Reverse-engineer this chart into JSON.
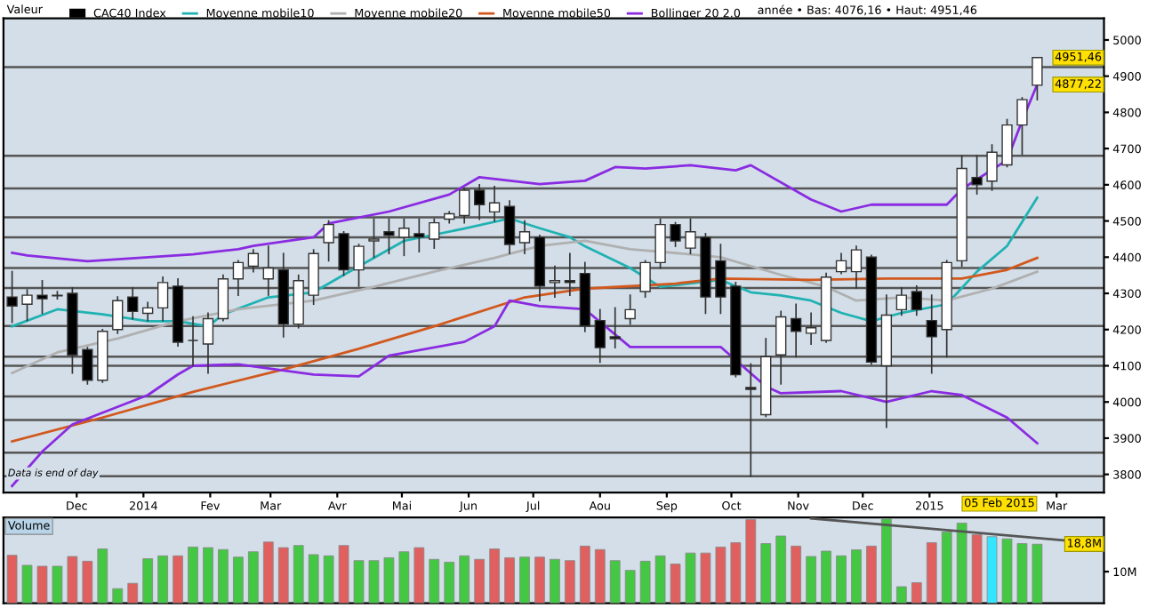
{
  "chart_data": [
    {
      "type": "candlestick",
      "title": "Valeur",
      "legend": "top",
      "grid": false,
      "x": [
        "2013-11-01",
        "2013-11-08",
        "2013-11-15",
        "2013-11-22",
        "2013-11-29",
        "2013-12-06",
        "2013-12-13",
        "2013-12-20",
        "2013-12-27",
        "2014-01-03",
        "2014-01-10",
        "2014-01-17",
        "2014-01-24",
        "2014-01-31",
        "2014-02-07",
        "2014-02-14",
        "2014-02-21",
        "2014-02-28",
        "2014-03-07",
        "2014-03-14",
        "2014-03-21",
        "2014-03-28",
        "2014-04-04",
        "2014-04-11",
        "2014-04-18",
        "2014-04-25",
        "2014-05-02",
        "2014-05-09",
        "2014-05-16",
        "2014-05-23",
        "2014-05-30",
        "2014-06-06",
        "2014-06-13",
        "2014-06-20",
        "2014-06-27",
        "2014-07-04",
        "2014-07-11",
        "2014-07-18",
        "2014-07-25",
        "2014-08-01",
        "2014-08-08",
        "2014-08-15",
        "2014-08-22",
        "2014-08-29",
        "2014-09-05",
        "2014-09-12",
        "2014-09-19",
        "2014-09-26",
        "2014-10-03",
        "2014-10-10",
        "2014-10-17",
        "2014-10-24",
        "2014-10-31",
        "2014-11-07",
        "2014-11-14",
        "2014-11-21",
        "2014-11-28",
        "2014-12-05",
        "2014-12-12",
        "2014-12-19",
        "2014-12-26",
        "2015-01-02",
        "2015-01-09",
        "2015-01-16",
        "2015-01-23",
        "2015-01-30",
        "2015-02-06",
        "2015-02-13",
        "2015-02-20"
      ],
      "series": [
        {
          "name": "CAC40 Index",
          "ohlc": [
            [
              4290,
              4360,
              4220,
              4265
            ],
            [
              4270,
              4310,
              4225,
              4295
            ],
            [
              4295,
              4335,
              4245,
              4285
            ],
            [
              4295,
              4305,
              4285,
              4293
            ],
            [
              4300,
              4315,
              4080,
              4130
            ],
            [
              4145,
              4150,
              4050,
              4060
            ],
            [
              4060,
              4200,
              4055,
              4195
            ],
            [
              4200,
              4290,
              4190,
              4280
            ],
            [
              4290,
              4315,
              4230,
              4250
            ],
            [
              4245,
              4275,
              4225,
              4260
            ],
            [
              4260,
              4345,
              4225,
              4330
            ],
            [
              4320,
              4340,
              4155,
              4165
            ],
            [
              4170,
              4235,
              4100,
              4170
            ],
            [
              4160,
              4245,
              4080,
              4230
            ],
            [
              4230,
              4350,
              4225,
              4340
            ],
            [
              4340,
              4390,
              4295,
              4385
            ],
            [
              4375,
              4420,
              4360,
              4410
            ],
            [
              4340,
              4430,
              4295,
              4370
            ],
            [
              4365,
              4410,
              4180,
              4215
            ],
            [
              4215,
              4350,
              4205,
              4335
            ],
            [
              4295,
              4420,
              4270,
              4410
            ],
            [
              4440,
              4500,
              4390,
              4490
            ],
            [
              4465,
              4470,
              4350,
              4365
            ],
            [
              4365,
              4435,
              4320,
              4430
            ],
            [
              4445,
              4505,
              4400,
              4450
            ],
            [
              4470,
              4505,
              4410,
              4460
            ],
            [
              4455,
              4505,
              4405,
              4480
            ],
            [
              4465,
              4505,
              4415,
              4455
            ],
            [
              4450,
              4505,
              4425,
              4495
            ],
            [
              4505,
              4525,
              4495,
              4520
            ],
            [
              4515,
              4590,
              4495,
              4585
            ],
            [
              4585,
              4600,
              4505,
              4545
            ],
            [
              4525,
              4595,
              4500,
              4550
            ],
            [
              4540,
              4555,
              4410,
              4435
            ],
            [
              4440,
              4500,
              4410,
              4470
            ],
            [
              4455,
              4460,
              4280,
              4320
            ],
            [
              4330,
              4375,
              4290,
              4335
            ],
            [
              4335,
              4410,
              4295,
              4330
            ],
            [
              4355,
              4385,
              4195,
              4210
            ],
            [
              4225,
              4255,
              4110,
              4150
            ],
            [
              4180,
              4260,
              4150,
              4175
            ],
            [
              4230,
              4295,
              4215,
              4255
            ],
            [
              4305,
              4390,
              4290,
              4385
            ],
            [
              4385,
              4505,
              4370,
              4490
            ],
            [
              4490,
              4495,
              4430,
              4445
            ],
            [
              4425,
              4505,
              4410,
              4470
            ],
            [
              4455,
              4465,
              4245,
              4290
            ],
            [
              4390,
              4435,
              4245,
              4290
            ],
            [
              4320,
              4330,
              4070,
              4075
            ],
            [
              4040,
              4105,
              3795,
              4035
            ],
            [
              3965,
              4175,
              3960,
              4125
            ],
            [
              4130,
              4250,
              4050,
              4235
            ],
            [
              4230,
              4270,
              4125,
              4195
            ],
            [
              4190,
              4245,
              4160,
              4205
            ],
            [
              4170,
              4355,
              4165,
              4345
            ],
            [
              4360,
              4410,
              4355,
              4390
            ],
            [
              4360,
              4430,
              4315,
              4420
            ],
            [
              4400,
              4405,
              4105,
              4110
            ],
            [
              4100,
              4295,
              3930,
              4240
            ],
            [
              4255,
              4315,
              4240,
              4295
            ],
            [
              4305,
              4320,
              4240,
              4255
            ],
            [
              4225,
              4295,
              4080,
              4180
            ],
            [
              4200,
              4390,
              4125,
              4385
            ],
            [
              4390,
              4680,
              4375,
              4645
            ],
            [
              4620,
              4680,
              4575,
              4600
            ],
            [
              4610,
              4710,
              4585,
              4690
            ],
            [
              4655,
              4780,
              4650,
              4765
            ],
            [
              4765,
              4840,
              4685,
              4835
            ],
            [
              4875,
              4951.46,
              4835,
              4951.46
            ]
          ]
        },
        {
          "name": "Moyenne mobile10",
          "type": "line",
          "color": "#20b2b2",
          "x": [
            "2013-11-01",
            "2013-11-22",
            "2013-12-13",
            "2014-01-03",
            "2014-01-17",
            "2014-01-31",
            "2014-02-07",
            "2014-02-28",
            "2014-03-21",
            "2014-04-04",
            "2014-05-02",
            "2014-05-30",
            "2014-06-20",
            "2014-07-04",
            "2014-07-18",
            "2014-07-25",
            "2014-08-15",
            "2014-08-29",
            "2014-09-26",
            "2014-10-10",
            "2014-10-24",
            "2014-11-07",
            "2014-11-21",
            "2014-12-05",
            "2014-12-19",
            "2015-01-09",
            "2015-01-23",
            "2015-02-06",
            "2015-02-20"
          ],
          "values": [
            4209,
            4256,
            4242,
            4223,
            4223,
            4209,
            4242,
            4289,
            4303,
            4351,
            4445,
            4479,
            4507,
            4480,
            4455,
            4430,
            4370,
            4318,
            4337,
            4303,
            4294,
            4280,
            4246,
            4223,
            4246,
            4270,
            4360,
            4431,
            4564
          ]
        },
        {
          "name": "Moyenne mobile20",
          "type": "line",
          "color": "#b0b0b0",
          "x": [
            "2013-11-01",
            "2013-11-22",
            "2013-12-20",
            "2014-01-17",
            "2014-02-14",
            "2014-03-21",
            "2014-04-18",
            "2014-05-16",
            "2014-06-13",
            "2014-07-04",
            "2014-07-25",
            "2014-08-15",
            "2014-09-12",
            "2014-09-26",
            "2014-10-24",
            "2014-11-14",
            "2014-11-28",
            "2014-12-19",
            "2015-01-09",
            "2015-01-30",
            "2015-02-20"
          ],
          "values": [
            4080,
            4137,
            4175,
            4223,
            4256,
            4280,
            4318,
            4360,
            4398,
            4431,
            4445,
            4422,
            4408,
            4400,
            4351,
            4318,
            4280,
            4289,
            4280,
            4313,
            4360
          ]
        },
        {
          "name": "Moyenne mobile50",
          "type": "line",
          "color": "#d2581e",
          "x": [
            "2013-11-01",
            "2013-12-13",
            "2014-01-24",
            "2014-03-07",
            "2014-04-11",
            "2014-05-16",
            "2014-06-27",
            "2014-07-25",
            "2014-09-05",
            "2014-09-26",
            "2014-11-07",
            "2014-12-12",
            "2015-01-16",
            "2015-02-06",
            "2015-02-20"
          ],
          "values": [
            3891,
            3957,
            4028,
            4090,
            4147,
            4209,
            4289,
            4313,
            4327,
            4341,
            4337,
            4341,
            4341,
            4365,
            4398
          ]
        },
        {
          "name": "Bollinger 20 2.0",
          "type": "line",
          "color": "#8a2be2",
          "x": [
            "2013-11-01",
            "2013-11-08",
            "2013-12-06",
            "2014-01-24",
            "2014-02-14",
            "2014-02-21",
            "2014-03-21",
            "2014-03-28",
            "2014-04-25",
            "2014-05-23",
            "2014-06-06",
            "2014-07-04",
            "2014-07-25",
            "2014-08-08",
            "2014-08-22",
            "2014-09-12",
            "2014-10-03",
            "2014-10-10",
            "2014-11-07",
            "2014-11-21",
            "2014-12-05",
            "2015-01-09",
            "2015-01-16",
            "2015-02-06",
            "2015-02-13",
            "2015-02-20"
          ],
          "values": [
            4412,
            4405,
            4389,
            4408,
            4422,
            4431,
            4455,
            4493,
            4526,
            4573,
            4621,
            4602,
            4611,
            4649,
            4645,
            4654,
            4640,
            4654,
            4559,
            4526,
            4545,
            4545,
            4588,
            4668,
            4777,
            4877
          ]
        },
        {
          "type": "line",
          "color": "#8a2be2",
          "x": [
            "2013-11-01",
            "2013-11-15",
            "2013-11-29",
            "2014-01-03",
            "2014-01-17",
            "2014-01-24",
            "2014-02-14",
            "2014-03-21",
            "2014-04-11",
            "2014-04-25",
            "2014-05-30",
            "2014-06-13",
            "2014-06-20",
            "2014-07-04",
            "2014-07-25",
            "2014-08-15",
            "2014-09-26",
            "2014-10-17",
            "2014-10-24",
            "2014-11-21",
            "2014-12-12",
            "2015-01-02",
            "2015-01-16",
            "2015-02-06",
            "2015-02-20"
          ],
          "values": [
            3768,
            3863,
            3938,
            4019,
            4076,
            4100,
            4104,
            4076,
            4071,
            4128,
            4166,
            4209,
            4280,
            4265,
            4256,
            4152,
            4152,
            4043,
            4024,
            4030,
            4000,
            4030,
            4019,
            3957,
            3886
          ]
        }
      ],
      "ylim": [
        3750,
        5060
      ],
      "yticks": [
        3800,
        3900,
        4000,
        4100,
        4200,
        4300,
        4400,
        4500,
        4600,
        4700,
        4800,
        4900,
        5000
      ],
      "xlim": [
        "2013-10-28",
        "2015-03-23"
      ],
      "xticks": [
        {
          "value": "2013-12-01",
          "label": "Dec"
        },
        {
          "value": "2014-01-01",
          "label": "2014"
        },
        {
          "value": "2014-02-01",
          "label": "Fev"
        },
        {
          "value": "2014-03-01",
          "label": "Mar"
        },
        {
          "value": "2014-04-01",
          "label": "Avr"
        },
        {
          "value": "2014-05-01",
          "label": "Mai"
        },
        {
          "value": "2014-06-01",
          "label": "Jun"
        },
        {
          "value": "2014-07-01",
          "label": "Jul"
        },
        {
          "value": "2014-08-01",
          "label": "Aou"
        },
        {
          "value": "2014-09-01",
          "label": "Sep"
        },
        {
          "value": "2014-10-01",
          "label": "Oct"
        },
        {
          "value": "2014-11-01",
          "label": "Nov"
        },
        {
          "value": "2014-12-01",
          "label": "Dec"
        },
        {
          "value": "2015-01-01",
          "label": "2015"
        },
        {
          "value": "2015-03-01",
          "label": "Mar"
        }
      ],
      "ref_lines": [
        {
          "axis": "y",
          "value": 4925,
          "color": "#555555"
        },
        {
          "axis": "y",
          "value": 4680,
          "color": "#555555"
        },
        {
          "axis": "y",
          "value": 4590,
          "color": "#555555"
        },
        {
          "axis": "y",
          "value": 4510,
          "color": "#555555"
        },
        {
          "axis": "y",
          "value": 4455,
          "color": "#555555"
        },
        {
          "axis": "y",
          "value": 4370,
          "color": "#555555"
        },
        {
          "axis": "y",
          "value": 4315,
          "color": "#555555"
        },
        {
          "axis": "y",
          "value": 4210,
          "color": "#555555"
        },
        {
          "axis": "y",
          "value": 4125,
          "color": "#555555"
        },
        {
          "axis": "y",
          "value": 4100,
          "color": "#555555"
        },
        {
          "axis": "y",
          "value": 4015,
          "color": "#555555"
        },
        {
          "axis": "y",
          "value": 3950,
          "color": "#555555"
        },
        {
          "axis": "y",
          "value": 3860,
          "color": "#555555"
        },
        {
          "axis": "y",
          "value": 3795,
          "color": "#555555"
        }
      ],
      "annotations": [
        "année • Bas: 4076,16 • Haut: 4951,46",
        "Data is end of day",
        "4951,46",
        "4877,22",
        "05 Feb 2015"
      ]
    },
    {
      "type": "bar",
      "title": "Volume",
      "grid": false,
      "tick_labels": "y",
      "x": [
        "2013-11-01",
        "2013-11-08",
        "2013-11-15",
        "2013-11-22",
        "2013-11-29",
        "2013-12-06",
        "2013-12-13",
        "2013-12-20",
        "2013-12-27",
        "2014-01-03",
        "2014-01-10",
        "2014-01-17",
        "2014-01-24",
        "2014-01-31",
        "2014-02-07",
        "2014-02-14",
        "2014-02-21",
        "2014-02-28",
        "2014-03-07",
        "2014-03-14",
        "2014-03-21",
        "2014-03-28",
        "2014-04-04",
        "2014-04-11",
        "2014-04-18",
        "2014-04-25",
        "2014-05-02",
        "2014-05-09",
        "2014-05-16",
        "2014-05-23",
        "2014-05-30",
        "2014-06-06",
        "2014-06-13",
        "2014-06-20",
        "2014-06-27",
        "2014-07-04",
        "2014-07-11",
        "2014-07-18",
        "2014-07-25",
        "2014-08-01",
        "2014-08-08",
        "2014-08-15",
        "2014-08-22",
        "2014-08-29",
        "2014-09-05",
        "2014-09-12",
        "2014-09-19",
        "2014-09-26",
        "2014-10-03",
        "2014-10-10",
        "2014-10-17",
        "2014-10-24",
        "2014-10-31",
        "2014-11-07",
        "2014-11-14",
        "2014-11-21",
        "2014-11-28",
        "2014-12-05",
        "2014-12-12",
        "2014-12-19",
        "2014-12-26",
        "2015-01-02",
        "2015-01-09",
        "2015-01-16",
        "2015-01-23",
        "2015-01-30",
        "2015-02-06",
        "2015-02-13",
        "2015-02-20"
      ],
      "series": [
        {
          "values": [
            15.2,
            12.0,
            11.7,
            11.7,
            14.8,
            13.3,
            17.2,
            4.6,
            6.3,
            14.1,
            15.0,
            15.0,
            17.8,
            17.6,
            17.0,
            14.6,
            16.3,
            19.4,
            17.6,
            18.3,
            15.4,
            15.0,
            18.3,
            13.5,
            13.5,
            14.4,
            16.3,
            17.6,
            13.9,
            13.0,
            15.0,
            13.9,
            17.2,
            14.4,
            14.6,
            14.6,
            13.9,
            13.5,
            18.1,
            17.0,
            13.5,
            10.4,
            13.3,
            15.0,
            12.4,
            15.9,
            15.9,
            17.8,
            19.2,
            26.5,
            18.9,
            21.3,
            18.1,
            14.8,
            16.5,
            15.0,
            16.9,
            18.1,
            26.7,
            5.2,
            6.5,
            19.2,
            22.6,
            25.4,
            21.7,
            21.1,
            20.4,
            18.9,
            18.7
          ],
          "colors": [
            "#e06060",
            "#44c844",
            "#e06060",
            "#44c844",
            "#e06060",
            "#e06060",
            "#44c844",
            "#44c844",
            "#e06060",
            "#44c844",
            "#44c844",
            "#e06060",
            "#44c844",
            "#44c844",
            "#44c844",
            "#44c844",
            "#44c844",
            "#e06060",
            "#e06060",
            "#44c844",
            "#44c844",
            "#44c844",
            "#e06060",
            "#44c844",
            "#44c844",
            "#44c844",
            "#44c844",
            "#e06060",
            "#44c844",
            "#44c844",
            "#44c844",
            "#e06060",
            "#e06060",
            "#e06060",
            "#44c844",
            "#e06060",
            "#44c844",
            "#e06060",
            "#e06060",
            "#e06060",
            "#44c844",
            "#44c844",
            "#44c844",
            "#44c844",
            "#e06060",
            "#44c844",
            "#e06060",
            "#e06060",
            "#e06060",
            "#e06060",
            "#44c844",
            "#44c844",
            "#e06060",
            "#44c844",
            "#44c844",
            "#44c844",
            "#44c844",
            "#e06060",
            "#44c844",
            "#44c844",
            "#e06060",
            "#e06060",
            "#44c844",
            "#44c844",
            "#e06060",
            "#33e5ff",
            "#44c844",
            "#44c844",
            "#44c844"
          ]
        },
        {
          "type": "line",
          "color": "#555555",
          "x": [
            "2014-11-07",
            "2015-03-23"
          ],
          "values": [
            26.9,
            18.8
          ]
        }
      ],
      "xlim": [
        "2013-10-28",
        "2015-03-23"
      ],
      "ylim": [
        0,
        27.2
      ],
      "yticks": [
        {
          "value": 10,
          "label": "10M"
        }
      ],
      "annotations": [
        "18,8M"
      ]
    }
  ]
}
